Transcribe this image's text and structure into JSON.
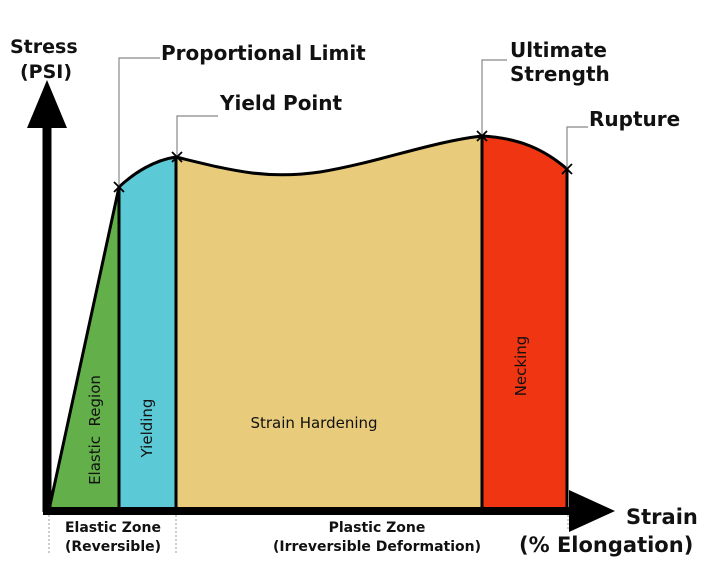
{
  "axes": {
    "y_label_line1": "Stress",
    "y_label_line2": "(PSI)",
    "x_label_line1": "Strain",
    "x_label_line2": "(% Elongation)"
  },
  "points": {
    "proportional_limit": "Proportional Limit",
    "yield_point": "Yield Point",
    "ultimate_strength_line1": "Ultimate",
    "ultimate_strength_line2": "Strength",
    "rupture": "Rupture"
  },
  "regions": [
    {
      "label": "Elastic  Region",
      "color": "#63b04a"
    },
    {
      "label": "Yielding",
      "color": "#5ccad6"
    },
    {
      "label": "Strain Hardening",
      "color": "#e8cc7c"
    },
    {
      "label": "Necking",
      "color": "#ef3512"
    }
  ],
  "zones": {
    "elastic_line1": "Elastic Zone",
    "elastic_line2": "(Reversible)",
    "plastic_line1": "Plastic Zone",
    "plastic_line2": "(Irreversible Deformation)"
  },
  "colors": {
    "outline": "#000000",
    "text": "#111111"
  }
}
